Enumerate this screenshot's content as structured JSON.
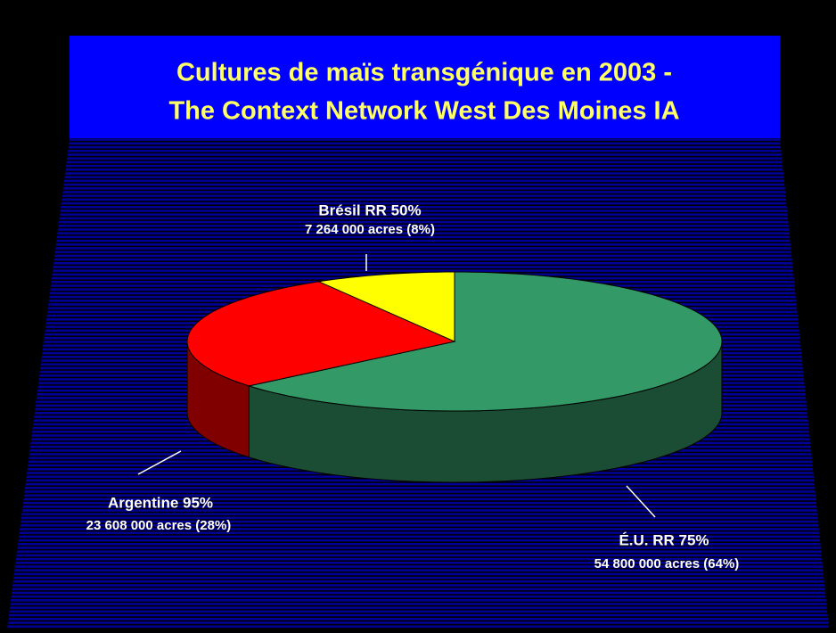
{
  "chart_data": {
    "type": "pie",
    "title": [
      "Cultures de maïs transgénique en 2003 -",
      "The Context Network West Des Moines IA"
    ],
    "categories": [
      "É.U. RR 75%",
      "Argentine  95%",
      "Brésil RR 50%"
    ],
    "values": [
      54800000,
      23608000,
      7264000
    ],
    "value_labels": [
      "54 800 000 acres (64%)",
      "23 608 000 acres (28%)",
      "7 264 000 acres (8%)"
    ],
    "colors": [
      "#339966",
      "#ff0000",
      "#ffff00"
    ]
  }
}
